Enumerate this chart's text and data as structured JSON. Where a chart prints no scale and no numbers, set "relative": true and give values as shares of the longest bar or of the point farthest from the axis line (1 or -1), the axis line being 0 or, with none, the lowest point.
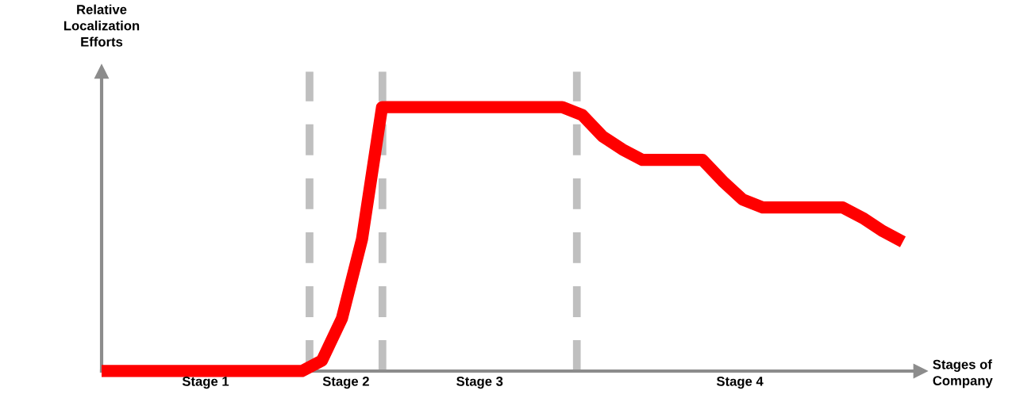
{
  "chart_data": {
    "type": "line",
    "relative": true,
    "xlabel": "Stages of\nCompany",
    "ylabel": "Relative\nLocalization\nEfforts",
    "categories": [
      null,
      null,
      null,
      null,
      null,
      null,
      null,
      null,
      null,
      null,
      null,
      null,
      null,
      null,
      null,
      null,
      null,
      null,
      null,
      null,
      null,
      null,
      null,
      null,
      null,
      null,
      null,
      null,
      null,
      null,
      null,
      null,
      null,
      null,
      null,
      null,
      null,
      null,
      null,
      null,
      null
    ],
    "series": [
      {
        "color": "#ff0000",
        "values": [
          0,
          0,
          0,
          0,
          0,
          0,
          0,
          0,
          0,
          0,
          0,
          0.04,
          0.2,
          0.5,
          1,
          1,
          1,
          1,
          1,
          1,
          1,
          1,
          1,
          1,
          0.97,
          0.89,
          0.84,
          0.8,
          0.8,
          0.8,
          0.8,
          0.72,
          0.65,
          0.62,
          0.62,
          0.62,
          0.62,
          0.62,
          0.58,
          0.53,
          0.49
        ]
      }
    ],
    "annotations": [
      "Stage 1",
      "Stage 2",
      "Stage 3",
      "Stage 4"
    ],
    "grid": false,
    "legend": false,
    "marker": "none",
    "line_style": "solid"
  }
}
